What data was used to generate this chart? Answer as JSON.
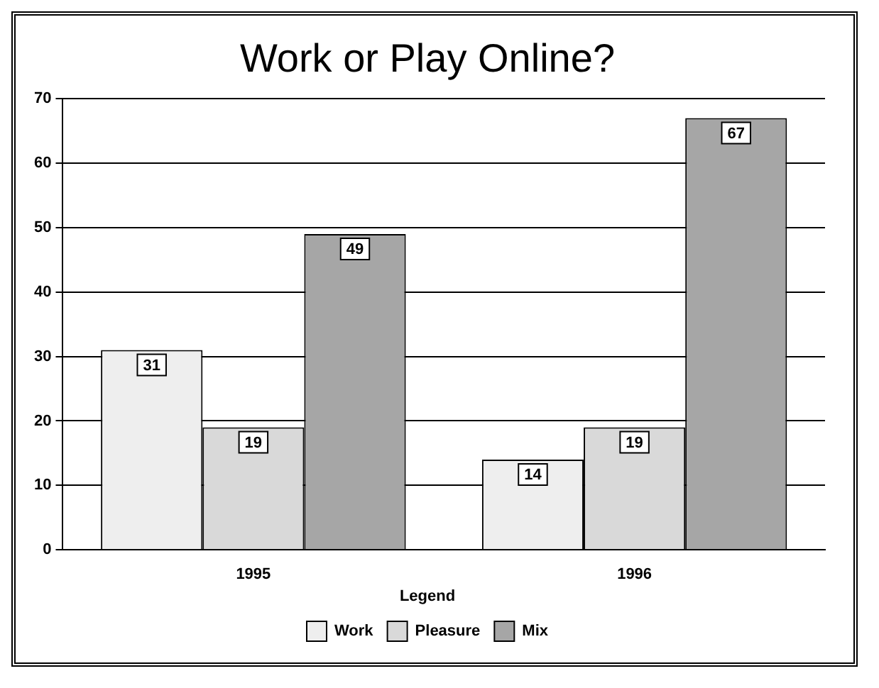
{
  "chart_data": {
    "type": "bar",
    "title": "Work or Play Online?",
    "legend_title": "Legend",
    "categories": [
      "1995",
      "1996"
    ],
    "series": [
      {
        "name": "Work",
        "color": "#eeeeee",
        "values": [
          31,
          14
        ]
      },
      {
        "name": "Pleasure",
        "color": "#d9d9d9",
        "values": [
          19,
          19
        ]
      },
      {
        "name": "Mix",
        "color": "#a6a6a6",
        "values": [
          49,
          67
        ]
      }
    ],
    "ylim": [
      0,
      70
    ],
    "yticks": [
      0,
      10,
      20,
      30,
      40,
      50,
      60,
      70
    ],
    "grid": "y",
    "legend": "bottom",
    "data_labels": true
  }
}
